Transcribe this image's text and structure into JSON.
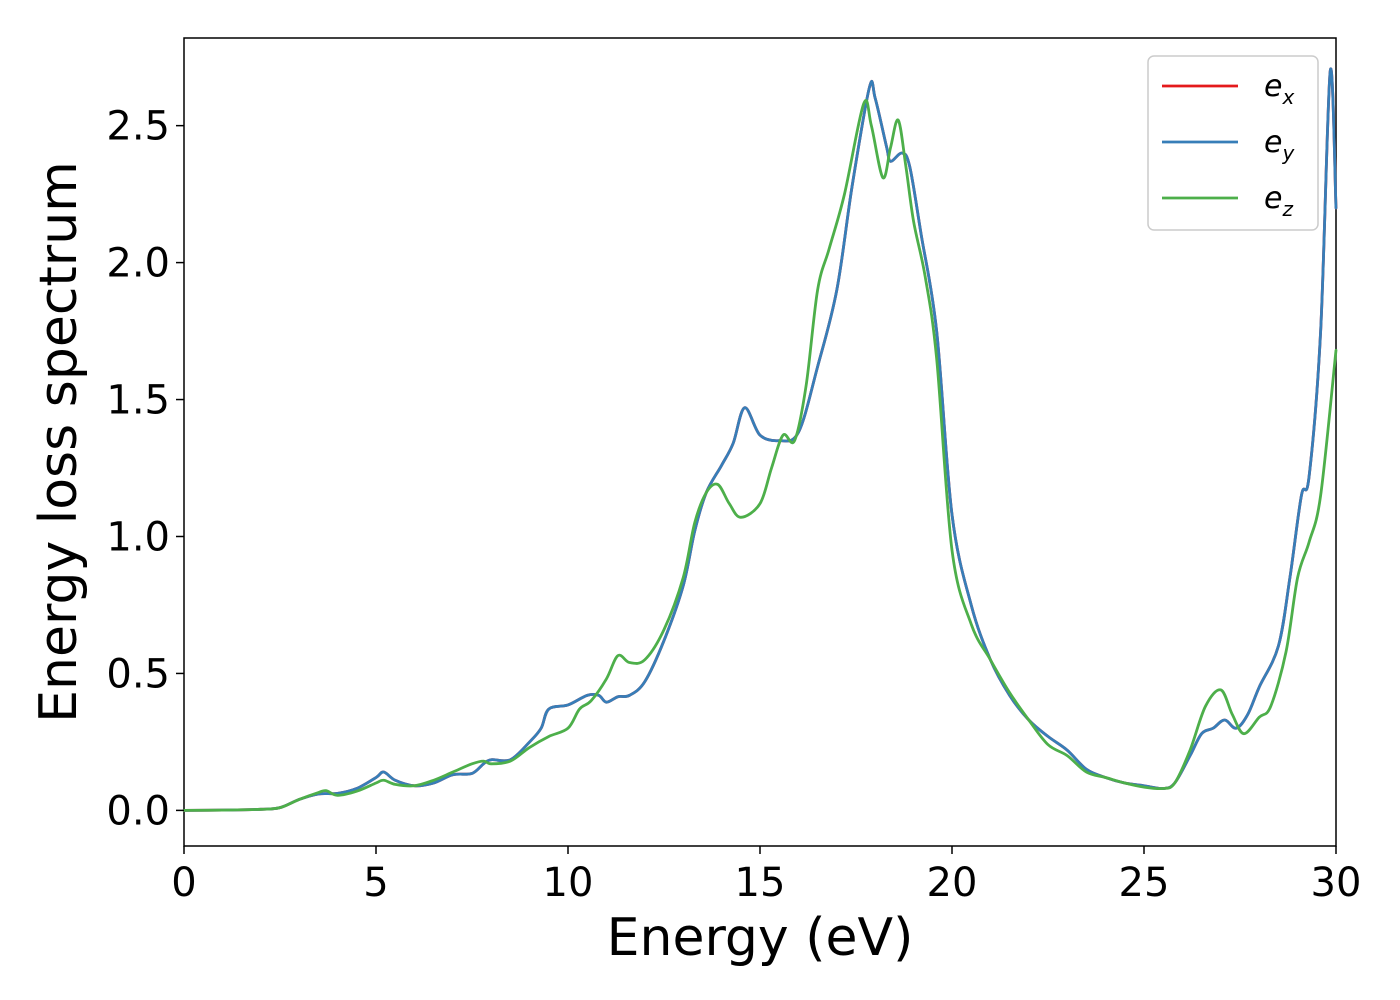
{
  "chart_data": {
    "type": "line",
    "xlabel": "Energy (eV)",
    "ylabel": "Energy loss spectrum",
    "xlim": [
      0,
      30
    ],
    "ylim": [
      -0.13,
      2.82
    ],
    "xticks": [
      0,
      5,
      10,
      15,
      20,
      25,
      30
    ],
    "xtick_labels": [
      "0",
      "5",
      "10",
      "15",
      "20",
      "25",
      "30"
    ],
    "yticks": [
      0.0,
      0.5,
      1.0,
      1.5,
      2.0,
      2.5
    ],
    "ytick_labels": [
      "0.0",
      "0.5",
      "1.0",
      "1.5",
      "2.0",
      "2.5"
    ],
    "grid": false,
    "legend_position": "top-right",
    "series": [
      {
        "name": "e_x",
        "label_base": "e",
        "label_sub": "x",
        "color": "#e41a1c",
        "points": [
          [
            0,
            0
          ],
          [
            1,
            0.001
          ],
          [
            2,
            0.004
          ],
          [
            2.5,
            0.01
          ],
          [
            3,
            0.04
          ],
          [
            3.5,
            0.06
          ],
          [
            4,
            0.062
          ],
          [
            4.5,
            0.08
          ],
          [
            5,
            0.12
          ],
          [
            5.2,
            0.14
          ],
          [
            5.5,
            0.11
          ],
          [
            6,
            0.09
          ],
          [
            6.5,
            0.1
          ],
          [
            7,
            0.13
          ],
          [
            7.5,
            0.135
          ],
          [
            7.8,
            0.17
          ],
          [
            8,
            0.185
          ],
          [
            8.5,
            0.185
          ],
          [
            9,
            0.25
          ],
          [
            9.3,
            0.3
          ],
          [
            9.5,
            0.37
          ],
          [
            10,
            0.385
          ],
          [
            10.5,
            0.42
          ],
          [
            10.8,
            0.42
          ],
          [
            11,
            0.395
          ],
          [
            11.3,
            0.415
          ],
          [
            11.6,
            0.42
          ],
          [
            12,
            0.47
          ],
          [
            12.5,
            0.62
          ],
          [
            13,
            0.82
          ],
          [
            13.3,
            1.02
          ],
          [
            13.6,
            1.16
          ],
          [
            14,
            1.26
          ],
          [
            14.3,
            1.34
          ],
          [
            14.6,
            1.47
          ],
          [
            15,
            1.37
          ],
          [
            15.5,
            1.35
          ],
          [
            16,
            1.38
          ],
          [
            16.5,
            1.62
          ],
          [
            17,
            1.9
          ],
          [
            17.4,
            2.28
          ],
          [
            17.85,
            2.64
          ],
          [
            18,
            2.6
          ],
          [
            18.3,
            2.42
          ],
          [
            18.4,
            2.37
          ],
          [
            18.7,
            2.4
          ],
          [
            18.9,
            2.35
          ],
          [
            19.2,
            2.1
          ],
          [
            19.6,
            1.75
          ],
          [
            20,
            1.08
          ],
          [
            20.5,
            0.75
          ],
          [
            21,
            0.55
          ],
          [
            21.5,
            0.42
          ],
          [
            22,
            0.33
          ],
          [
            22.5,
            0.27
          ],
          [
            23,
            0.22
          ],
          [
            23.5,
            0.15
          ],
          [
            24,
            0.12
          ],
          [
            24.5,
            0.1
          ],
          [
            25,
            0.09
          ],
          [
            25.5,
            0.08
          ],
          [
            25.8,
            0.1
          ],
          [
            26.2,
            0.2
          ],
          [
            26.5,
            0.28
          ],
          [
            26.8,
            0.3
          ],
          [
            27.1,
            0.33
          ],
          [
            27.4,
            0.3
          ],
          [
            27.7,
            0.35
          ],
          [
            28,
            0.45
          ],
          [
            28.5,
            0.6
          ],
          [
            28.8,
            0.85
          ],
          [
            29.1,
            1.15
          ],
          [
            29.3,
            1.22
          ],
          [
            29.6,
            1.75
          ],
          [
            29.85,
            2.7
          ],
          [
            30,
            2.2
          ]
        ]
      },
      {
        "name": "e_y",
        "label_base": "e",
        "label_sub": "y",
        "color": "#377eb8",
        "points": [
          [
            0,
            0
          ],
          [
            1,
            0.001
          ],
          [
            2,
            0.004
          ],
          [
            2.5,
            0.01
          ],
          [
            3,
            0.04
          ],
          [
            3.5,
            0.06
          ],
          [
            4,
            0.062
          ],
          [
            4.5,
            0.08
          ],
          [
            5,
            0.12
          ],
          [
            5.2,
            0.14
          ],
          [
            5.5,
            0.11
          ],
          [
            6,
            0.09
          ],
          [
            6.5,
            0.1
          ],
          [
            7,
            0.13
          ],
          [
            7.5,
            0.135
          ],
          [
            7.8,
            0.17
          ],
          [
            8,
            0.185
          ],
          [
            8.5,
            0.185
          ],
          [
            9,
            0.25
          ],
          [
            9.3,
            0.3
          ],
          [
            9.5,
            0.37
          ],
          [
            10,
            0.385
          ],
          [
            10.5,
            0.42
          ],
          [
            10.8,
            0.42
          ],
          [
            11,
            0.395
          ],
          [
            11.3,
            0.415
          ],
          [
            11.6,
            0.42
          ],
          [
            12,
            0.47
          ],
          [
            12.5,
            0.62
          ],
          [
            13,
            0.82
          ],
          [
            13.3,
            1.02
          ],
          [
            13.6,
            1.16
          ],
          [
            14,
            1.26
          ],
          [
            14.3,
            1.34
          ],
          [
            14.6,
            1.47
          ],
          [
            15,
            1.37
          ],
          [
            15.5,
            1.35
          ],
          [
            16,
            1.38
          ],
          [
            16.5,
            1.62
          ],
          [
            17,
            1.9
          ],
          [
            17.4,
            2.28
          ],
          [
            17.85,
            2.64
          ],
          [
            18,
            2.6
          ],
          [
            18.3,
            2.42
          ],
          [
            18.4,
            2.37
          ],
          [
            18.7,
            2.4
          ],
          [
            18.9,
            2.35
          ],
          [
            19.2,
            2.1
          ],
          [
            19.6,
            1.75
          ],
          [
            20,
            1.08
          ],
          [
            20.5,
            0.75
          ],
          [
            21,
            0.55
          ],
          [
            21.5,
            0.42
          ],
          [
            22,
            0.33
          ],
          [
            22.5,
            0.27
          ],
          [
            23,
            0.22
          ],
          [
            23.5,
            0.15
          ],
          [
            24,
            0.12
          ],
          [
            24.5,
            0.1
          ],
          [
            25,
            0.09
          ],
          [
            25.5,
            0.08
          ],
          [
            25.8,
            0.1
          ],
          [
            26.2,
            0.2
          ],
          [
            26.5,
            0.28
          ],
          [
            26.8,
            0.3
          ],
          [
            27.1,
            0.33
          ],
          [
            27.4,
            0.3
          ],
          [
            27.7,
            0.35
          ],
          [
            28,
            0.45
          ],
          [
            28.5,
            0.6
          ],
          [
            28.8,
            0.85
          ],
          [
            29.1,
            1.15
          ],
          [
            29.3,
            1.22
          ],
          [
            29.6,
            1.75
          ],
          [
            29.85,
            2.7
          ],
          [
            30,
            2.2
          ]
        ]
      },
      {
        "name": "e_z",
        "label_base": "e",
        "label_sub": "z",
        "color": "#4daf4a",
        "points": [
          [
            0,
            0
          ],
          [
            1,
            0.001
          ],
          [
            2,
            0.004
          ],
          [
            2.5,
            0.01
          ],
          [
            3,
            0.04
          ],
          [
            3.5,
            0.065
          ],
          [
            3.7,
            0.072
          ],
          [
            4,
            0.055
          ],
          [
            4.5,
            0.07
          ],
          [
            5,
            0.1
          ],
          [
            5.2,
            0.11
          ],
          [
            5.5,
            0.095
          ],
          [
            6,
            0.09
          ],
          [
            6.5,
            0.11
          ],
          [
            7,
            0.14
          ],
          [
            7.5,
            0.17
          ],
          [
            7.8,
            0.18
          ],
          [
            8,
            0.17
          ],
          [
            8.5,
            0.18
          ],
          [
            9,
            0.23
          ],
          [
            9.5,
            0.27
          ],
          [
            10,
            0.3
          ],
          [
            10.3,
            0.37
          ],
          [
            10.6,
            0.4
          ],
          [
            11,
            0.48
          ],
          [
            11.3,
            0.565
          ],
          [
            11.6,
            0.54
          ],
          [
            12,
            0.55
          ],
          [
            12.5,
            0.66
          ],
          [
            13,
            0.85
          ],
          [
            13.3,
            1.05
          ],
          [
            13.6,
            1.16
          ],
          [
            13.9,
            1.19
          ],
          [
            14.2,
            1.12
          ],
          [
            14.5,
            1.07
          ],
          [
            15,
            1.12
          ],
          [
            15.3,
            1.25
          ],
          [
            15.6,
            1.37
          ],
          [
            15.9,
            1.35
          ],
          [
            16.2,
            1.55
          ],
          [
            16.5,
            1.9
          ],
          [
            16.8,
            2.05
          ],
          [
            17.2,
            2.25
          ],
          [
            17.7,
            2.58
          ],
          [
            17.9,
            2.5
          ],
          [
            18.2,
            2.31
          ],
          [
            18.4,
            2.42
          ],
          [
            18.6,
            2.52
          ],
          [
            18.8,
            2.35
          ],
          [
            19,
            2.15
          ],
          [
            19.3,
            1.95
          ],
          [
            19.6,
            1.65
          ],
          [
            20,
            0.95
          ],
          [
            20.5,
            0.68
          ],
          [
            21,
            0.55
          ],
          [
            21.5,
            0.43
          ],
          [
            22,
            0.33
          ],
          [
            22.5,
            0.24
          ],
          [
            23,
            0.2
          ],
          [
            23.5,
            0.14
          ],
          [
            24,
            0.12
          ],
          [
            24.5,
            0.1
          ],
          [
            25,
            0.085
          ],
          [
            25.5,
            0.08
          ],
          [
            25.8,
            0.1
          ],
          [
            26.2,
            0.22
          ],
          [
            26.6,
            0.38
          ],
          [
            27,
            0.44
          ],
          [
            27.3,
            0.35
          ],
          [
            27.6,
            0.28
          ],
          [
            28,
            0.34
          ],
          [
            28.3,
            0.38
          ],
          [
            28.7,
            0.58
          ],
          [
            29,
            0.85
          ],
          [
            29.3,
            0.98
          ],
          [
            29.6,
            1.15
          ],
          [
            30,
            1.68
          ]
        ]
      }
    ]
  }
}
